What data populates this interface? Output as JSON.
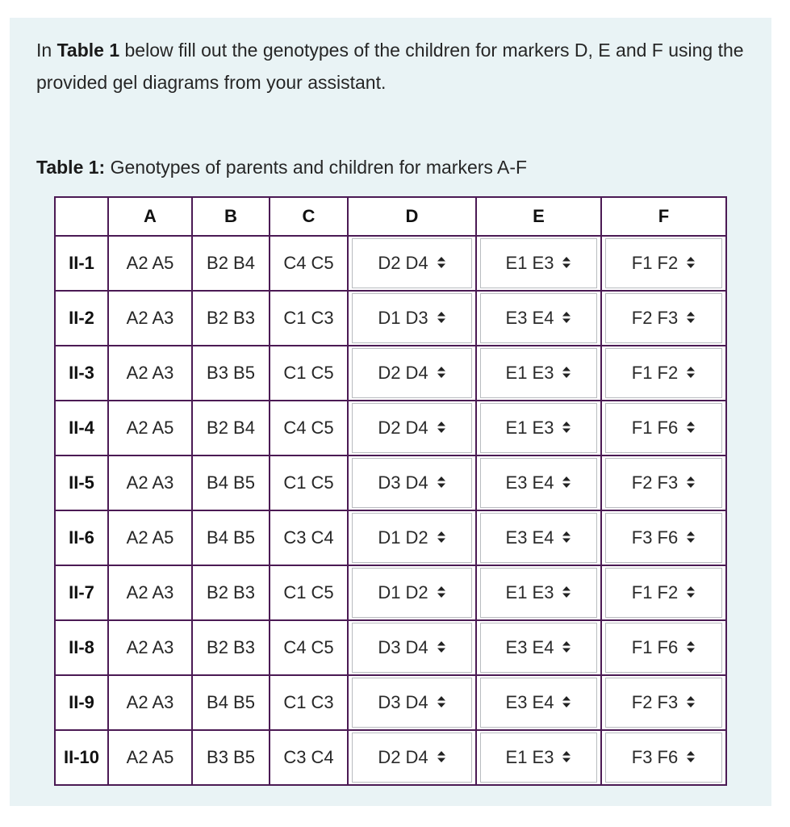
{
  "intro": {
    "pre": "In ",
    "bold": "Table 1",
    "post": " below fill out the genotypes of the children for markers D, E and F using the provided gel diagrams from your assistant."
  },
  "caption": {
    "label": "Table 1:",
    "text": " Genotypes of parents and children for markers A-F"
  },
  "table": {
    "headers": [
      "",
      "A",
      "B",
      "C",
      "D",
      "E",
      "F"
    ],
    "rows": [
      {
        "id": "II-1",
        "A": "A2 A5",
        "B": "B2 B4",
        "C": "C4 C5",
        "D": "D2 D4",
        "E": "E1 E3",
        "F": "F1 F2"
      },
      {
        "id": "II-2",
        "A": "A2 A3",
        "B": "B2 B3",
        "C": "C1 C3",
        "D": "D1 D3",
        "E": "E3 E4",
        "F": "F2 F3"
      },
      {
        "id": "II-3",
        "A": "A2 A3",
        "B": "B3 B5",
        "C": "C1 C5",
        "D": "D2 D4",
        "E": "E1 E3",
        "F": "F1 F2"
      },
      {
        "id": "II-4",
        "A": "A2 A5",
        "B": "B2 B4",
        "C": "C4 C5",
        "D": "D2 D4",
        "E": "E1 E3",
        "F": "F1 F6"
      },
      {
        "id": "II-5",
        "A": "A2 A3",
        "B": "B4 B5",
        "C": "C1 C5",
        "D": "D3 D4",
        "E": "E3 E4",
        "F": "F2 F3"
      },
      {
        "id": "II-6",
        "A": "A2 A5",
        "B": "B4 B5",
        "C": "C3 C4",
        "D": "D1 D2",
        "E": "E3 E4",
        "F": "F3 F6"
      },
      {
        "id": "II-7",
        "A": "A2 A3",
        "B": "B2 B3",
        "C": "C1 C5",
        "D": "D1 D2",
        "E": "E1 E3",
        "F": "F1 F2"
      },
      {
        "id": "II-8",
        "A": "A2 A3",
        "B": "B2 B3",
        "C": "C4 C5",
        "D": "D3 D4",
        "E": "E3 E4",
        "F": "F1 F6"
      },
      {
        "id": "II-9",
        "A": "A2 A3",
        "B": "B4 B5",
        "C": "C1 C3",
        "D": "D3 D4",
        "E": "E3 E4",
        "F": "F2 F3"
      },
      {
        "id": "II-10",
        "A": "A2 A5",
        "B": "B3 B5",
        "C": "C3 C4",
        "D": "D2 D4",
        "E": "E1 E3",
        "F": "F3 F6"
      }
    ]
  },
  "icons": {
    "select_arrow": "up-down-caret-icon"
  },
  "colors": {
    "panel_bg": "#e9f3f5",
    "table_border": "#4b1a54"
  }
}
